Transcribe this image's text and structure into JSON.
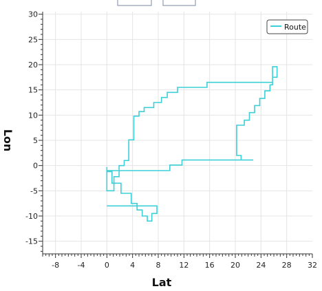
{
  "chart_data": {
    "type": "line",
    "xlabel": "Lat",
    "ylabel": "Lon",
    "xlim": [
      -10,
      32
    ],
    "ylim": [
      -17.5,
      30.5
    ],
    "xticks": [
      -8,
      -4,
      0,
      4,
      8,
      12,
      16,
      20,
      24,
      28,
      32
    ],
    "xtick_labels": [
      "-8",
      "-4",
      "0",
      "4",
      "8",
      "12",
      "16",
      "20",
      "24",
      "28",
      "32"
    ],
    "yticks": [
      -15,
      -10,
      -5,
      0,
      5,
      10,
      15,
      20,
      25,
      30
    ],
    "ytick_labels": [
      "-15",
      "-10",
      "-5",
      "0",
      "5",
      "10",
      "15",
      "20",
      "25",
      "30"
    ],
    "grid": true,
    "legend": {
      "position": "top-right",
      "entries": [
        "Route"
      ]
    },
    "series": [
      {
        "name": "Route",
        "color": "#3ccfd8",
        "x": [
          0,
          0,
          9.8,
          9.8,
          11.7,
          11.7,
          22.8,
          22.8,
          20.9,
          20.9,
          20.2,
          20.2,
          21.4,
          21.4,
          22.2,
          22.2,
          23.0,
          23.0,
          23.8,
          23.8,
          24.6,
          24.6,
          25.4,
          25.4,
          25.8,
          25.8,
          26.5,
          26.5,
          25.8,
          25.8,
          15.6,
          15.6,
          11.0,
          11.0,
          9.4,
          9.4,
          8.5,
          8.5,
          7.3,
          7.3,
          5.8,
          5.8,
          5.0,
          5.0,
          4.2,
          4.2,
          3.4,
          3.4,
          2.7,
          2.7,
          1.9,
          1.9,
          1.1,
          1.1,
          0,
          0,
          0.8,
          0.8,
          2.2,
          2.2,
          3.8,
          3.8,
          4.7,
          4.7,
          5.5,
          5.5,
          6.3,
          6.3,
          7.0,
          7.0,
          7.8,
          7.8,
          0
        ],
        "y": [
          -0.3,
          -1.0,
          -1.0,
          0.1,
          0.1,
          1.1,
          1.1,
          1.1,
          1.1,
          2.0,
          2.0,
          8.0,
          8.0,
          9.0,
          9.0,
          10.5,
          10.5,
          11.9,
          11.9,
          13.3,
          13.3,
          14.8,
          14.8,
          16.0,
          16.0,
          17.5,
          17.5,
          19.6,
          19.6,
          16.5,
          16.5,
          15.5,
          15.5,
          14.5,
          14.5,
          13.5,
          13.5,
          12.5,
          12.5,
          11.5,
          11.5,
          10.7,
          10.7,
          9.8,
          9.8,
          5.1,
          5.1,
          1.0,
          1.0,
          0,
          0,
          -2.2,
          -2.2,
          -5.0,
          -5.0,
          -1.2,
          -1.2,
          -3.5,
          -3.5,
          -5.5,
          -5.5,
          -7.5,
          -7.5,
          -8.8,
          -8.8,
          -10.0,
          -10.0,
          -11.0,
          -11.0,
          -9.5,
          -9.5,
          -8.0,
          -8.0
        ]
      }
    ]
  },
  "toolbar": {
    "buttons": [
      {
        "label": ""
      },
      {
        "label": ""
      }
    ]
  }
}
